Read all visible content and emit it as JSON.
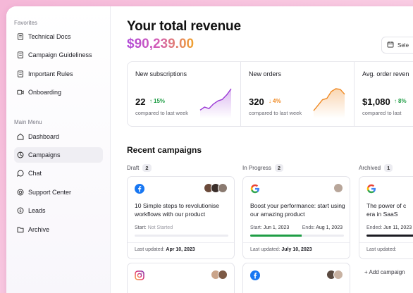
{
  "sidebar": {
    "favorites_label": "Favorites",
    "favorites": [
      {
        "label": "Technical Docs",
        "icon": "document-icon"
      },
      {
        "label": "Campaign Guideliness",
        "icon": "document-icon"
      },
      {
        "label": "Important Rules",
        "icon": "document-icon"
      },
      {
        "label": "Onboarding",
        "icon": "video-icon"
      }
    ],
    "main_menu_label": "Main Menu",
    "main_menu": [
      {
        "label": "Dashboard",
        "icon": "home-icon",
        "active": false
      },
      {
        "label": "Campaigns",
        "icon": "campaigns-icon",
        "active": true
      },
      {
        "label": "Chat",
        "icon": "chat-icon",
        "active": false
      },
      {
        "label": "Support Center",
        "icon": "support-icon",
        "active": false
      },
      {
        "label": "Leads",
        "icon": "dollar-icon",
        "active": false
      },
      {
        "label": "Archive",
        "icon": "folder-icon",
        "active": false
      }
    ]
  },
  "header": {
    "title": "Your total revenue",
    "revenue": "$90,239.00",
    "date_button": "Sele"
  },
  "stats": [
    {
      "label": "New subscriptions",
      "value": "22",
      "delta": "15%",
      "direction": "up",
      "sub": "compared to last week",
      "color": "#9b3ad6",
      "trend": [
        2,
        3,
        2.5,
        4,
        5,
        5.5,
        7,
        9
      ]
    },
    {
      "label": "New orders",
      "value": "320",
      "delta": "4%",
      "direction": "down",
      "sub": "compared to last week",
      "color": "#f08a24",
      "trend": [
        2,
        4,
        6,
        6.5,
        9,
        10,
        9.8,
        8
      ]
    },
    {
      "label": "Avg. order reven",
      "value": "$1,080",
      "delta": "8%",
      "direction": "up",
      "sub": "compared to last",
      "color": "#1f9d45",
      "trend": []
    }
  ],
  "recent": {
    "title": "Recent campaigns",
    "columns": [
      {
        "label": "Draft",
        "count": "2"
      },
      {
        "label": "In Progress",
        "count": "2"
      },
      {
        "label": "Archived",
        "count": "1"
      }
    ],
    "cards": {
      "draft_1": {
        "logo": "facebook-icon",
        "title": "10 Simple steps to revolutionise workflows with our product",
        "start_label": "Start:",
        "start_value": "Not Started",
        "updated_label": "Last updated:",
        "updated_value": "Apr 10, 2023",
        "progress": 0
      },
      "progress_1": {
        "logo": "google-icon",
        "title": "Boost your performance: start using our amazing product",
        "start_label": "Start:",
        "start_value": "Jun 1, 2023",
        "end_label": "Ends:",
        "end_value": "Aug 1, 2023",
        "updated_label": "Last updated:",
        "updated_value": "July 10, 2023",
        "progress": 0.55
      },
      "archived_1": {
        "logo": "google-icon",
        "title_line1": "The power of c",
        "title_line2": "era in SaaS",
        "ended_label": "Ended:",
        "ended_value": "Jun 11, 2023",
        "updated_label": "Last updated:",
        "updated_value": "",
        "progress": 1
      },
      "draft_2": {
        "logo": "instagram-icon"
      },
      "progress_2": {
        "logo": "facebook-icon"
      }
    },
    "add_campaign": "+ Add campaign"
  },
  "colors": {
    "up": "#1f9d45",
    "down": "#f08a24",
    "facebook": "#1877f2",
    "progress": "#1f9d45"
  }
}
